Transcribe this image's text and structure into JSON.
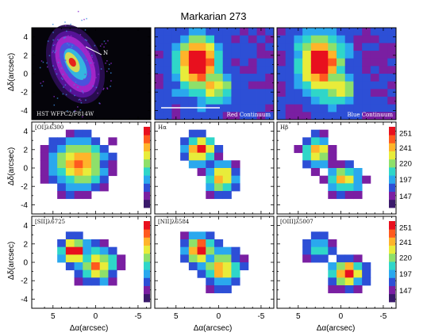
{
  "figure": {
    "title": "Markarian 273",
    "x_label": "Δα(arcsec)",
    "y_label": "Δδ(arcsec)",
    "x_ticks": [
      "5",
      "0",
      "-5"
    ],
    "y_ticks": [
      "4",
      "2",
      "0",
      "-2",
      "-4"
    ]
  },
  "colorbars": [
    {
      "ticks": [
        "251",
        "241",
        "220",
        "197",
        "147"
      ]
    },
    {
      "ticks": [
        "251",
        "241",
        "220",
        "197",
        "147"
      ]
    }
  ],
  "panels": [
    {
      "label": "HST WFPC2/F814W",
      "arrow_label": "N"
    },
    {
      "label": "Red Continuum"
    },
    {
      "label": "Blue Continuum"
    },
    {
      "label": "[OI]λ6300"
    },
    {
      "label": "Hα"
    },
    {
      "label": "Hβ"
    },
    {
      "label": "[SII]λ6725"
    },
    {
      "label": "[NII]λ6584"
    },
    {
      "label": "[OIII]λ5007"
    }
  ],
  "colormap": [
    "#3a1a6b",
    "#7a1fa2",
    "#2d4fd6",
    "#2aa8ee",
    "#2fd6c9",
    "#8ee06a",
    "#e8ec3a",
    "#ffb42a",
    "#ff5a1e",
    "#e8101e"
  ]
}
